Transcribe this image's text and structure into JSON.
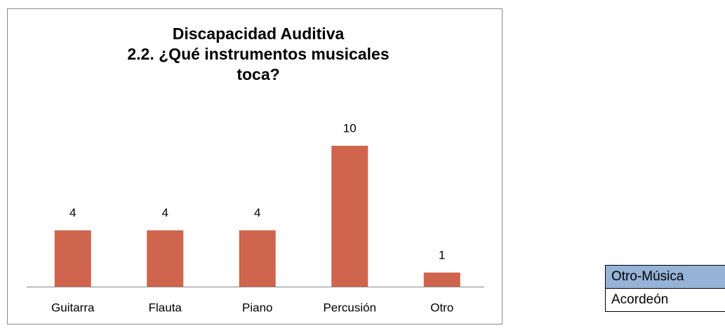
{
  "chart_data": {
    "type": "bar",
    "title": [
      "Discapacidad Auditiva",
      "2.2. ¿Qué instrumentos musicales",
      "toca?"
    ],
    "categories": [
      "Guitarra",
      "Flauta",
      "Piano",
      "Percusión",
      "Otro"
    ],
    "values": [
      4,
      4,
      4,
      10,
      1
    ],
    "color": "#cf654c"
  },
  "table": {
    "rows": [
      [
        "Otro-Música"
      ],
      [
        "Acordeón"
      ]
    ]
  }
}
